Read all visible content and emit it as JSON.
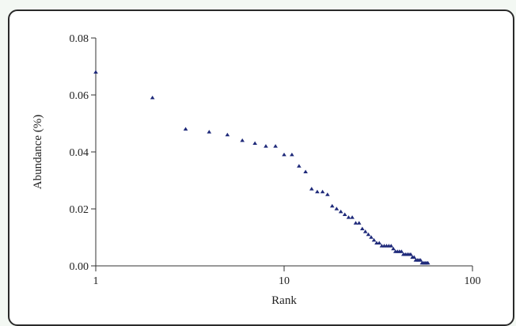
{
  "chart_data": {
    "type": "scatter",
    "title": "",
    "xlabel": "Rank",
    "ylabel": "Abundance (%)",
    "x_scale": "log",
    "xlim": [
      1,
      100
    ],
    "ylim": [
      0,
      0.08
    ],
    "x_ticks": [
      1,
      10,
      100
    ],
    "x_tick_labels": [
      "1",
      "10",
      "100"
    ],
    "y_ticks": [
      0,
      0.02,
      0.04,
      0.06,
      0.08
    ],
    "y_tick_labels": [
      "0.00",
      "0.02",
      "0.04",
      "0.06",
      "0.08"
    ],
    "grid": false,
    "legend": "none",
    "marker": "triangle",
    "marker_color": "#1f2a7a",
    "series": [
      {
        "x": [
          1,
          2,
          3,
          4,
          5,
          6,
          7,
          8,
          9,
          10,
          11,
          12,
          13,
          14,
          15,
          16,
          17,
          18,
          19,
          20,
          21,
          22,
          23,
          24,
          25,
          26,
          27,
          28,
          29,
          30,
          31,
          32,
          33,
          34,
          35,
          36,
          37,
          38,
          39,
          40,
          41,
          42,
          43,
          44,
          45,
          46,
          47,
          48,
          49,
          50,
          51,
          52,
          53,
          54,
          55,
          56,
          57,
          58
        ],
        "y": [
          0.068,
          0.059,
          0.048,
          0.047,
          0.046,
          0.044,
          0.043,
          0.042,
          0.042,
          0.039,
          0.039,
          0.035,
          0.033,
          0.027,
          0.026,
          0.026,
          0.025,
          0.021,
          0.02,
          0.019,
          0.018,
          0.017,
          0.017,
          0.015,
          0.015,
          0.013,
          0.012,
          0.011,
          0.01,
          0.009,
          0.008,
          0.008,
          0.007,
          0.007,
          0.007,
          0.007,
          0.007,
          0.006,
          0.005,
          0.005,
          0.005,
          0.005,
          0.004,
          0.004,
          0.004,
          0.004,
          0.004,
          0.003,
          0.003,
          0.002,
          0.002,
          0.002,
          0.002,
          0.001,
          0.001,
          0.001,
          0.001,
          0.001
        ]
      }
    ]
  }
}
